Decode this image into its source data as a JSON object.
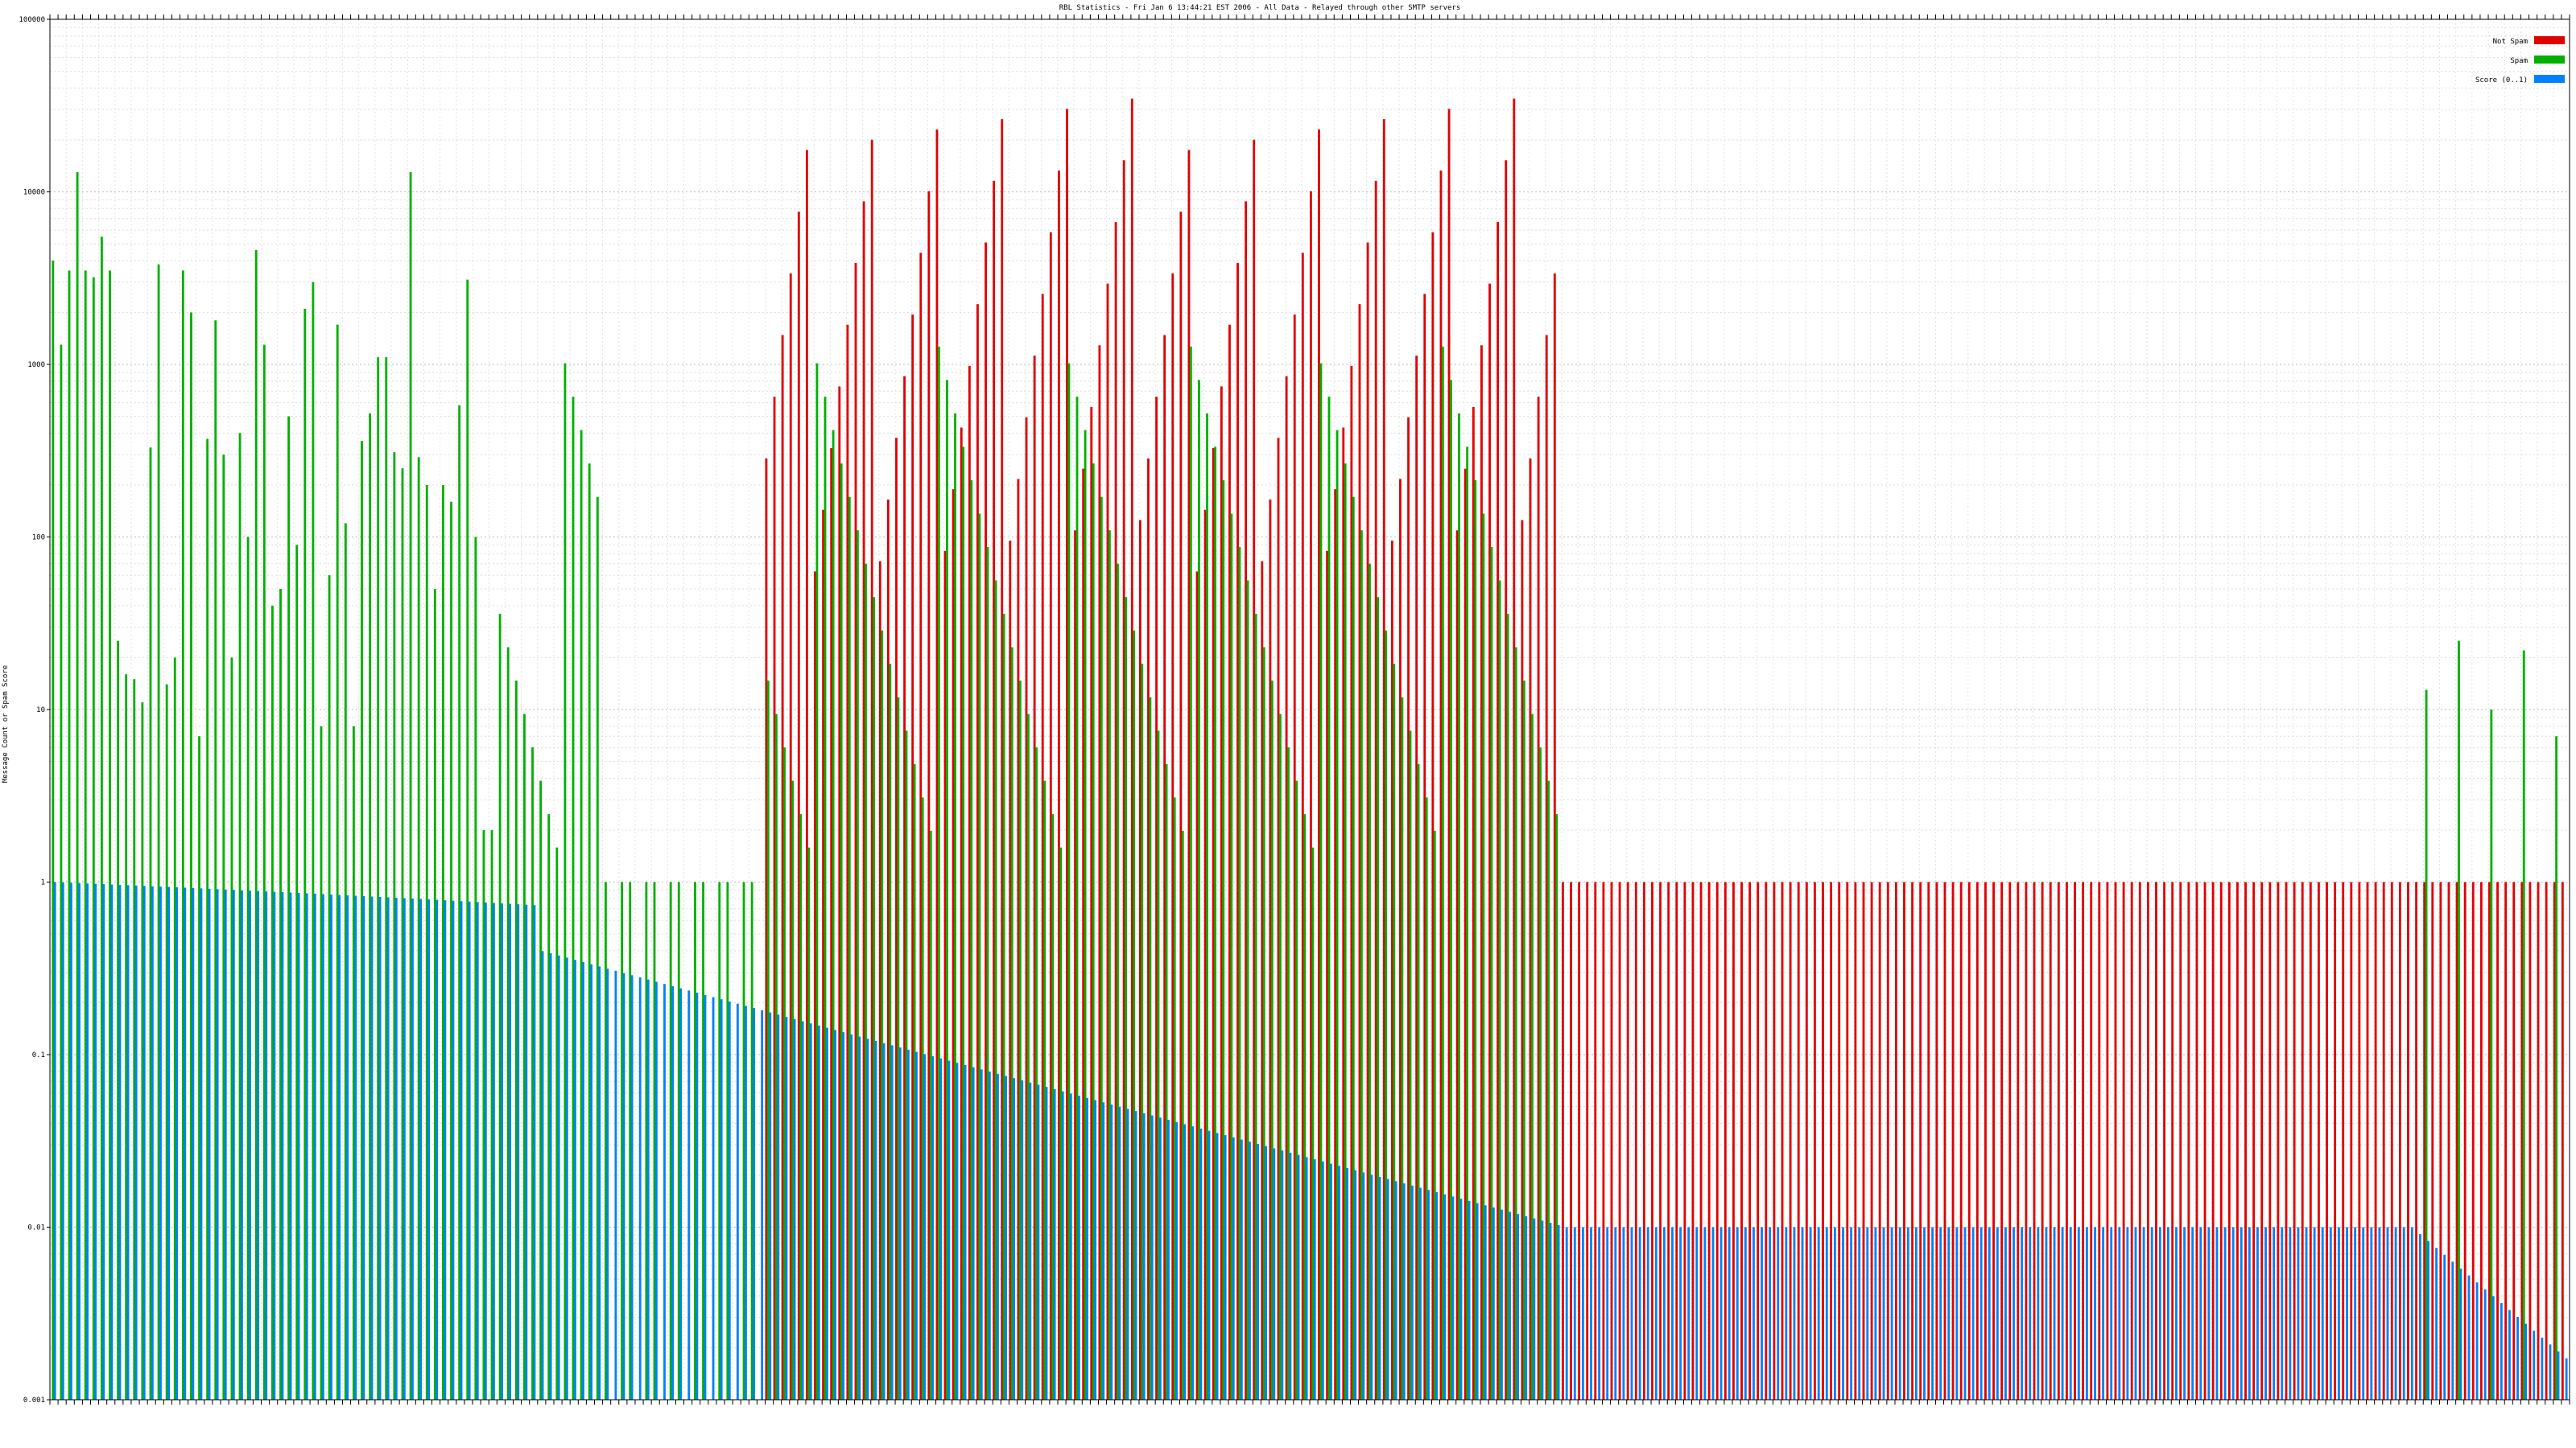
{
  "chart_data": {
    "type": "bar",
    "title": "RBL Statistics - Fri Jan  6 13:44:21 EST 2006 - All Data - Relayed through other SMTP servers",
    "ylabel": "Message Count or Spam Score",
    "xlabel": "",
    "yscale": "log",
    "ylim": [
      0.001,
      100000
    ],
    "yticks": [
      {
        "value": 0.001,
        "label": "0.001"
      },
      {
        "value": 0.01,
        "label": "0.01"
      },
      {
        "value": 0.1,
        "label": "0.1"
      },
      {
        "value": 1,
        "label": "1"
      },
      {
        "value": 10,
        "label": "10"
      },
      {
        "value": 100,
        "label": "100"
      },
      {
        "value": 1000,
        "label": "1000"
      },
      {
        "value": 10000,
        "label": "10000"
      },
      {
        "value": 100000,
        "label": "100000"
      }
    ],
    "grid": true,
    "legend_position": "top-right",
    "series": [
      {
        "name": "Not Spam",
        "color": "#e00000",
        "values": [
          0,
          0,
          0,
          0,
          0,
          0,
          0,
          0,
          0,
          0,
          0,
          0,
          0,
          0,
          0,
          0,
          0,
          0,
          0,
          0,
          0,
          0,
          0,
          0,
          0,
          0,
          0,
          0,
          0,
          0,
          0,
          0,
          0,
          0,
          0,
          0,
          0,
          0,
          0,
          0,
          0,
          0,
          0,
          0,
          0,
          0,
          0,
          0,
          0,
          0,
          0,
          0,
          0,
          0,
          0,
          0,
          0,
          0,
          0,
          0,
          0,
          0,
          0,
          0,
          0,
          0,
          0,
          0,
          0,
          0,
          0,
          0,
          0,
          0,
          0,
          0,
          0,
          0,
          0,
          0,
          0,
          0,
          0,
          0,
          0,
          0,
          0,
          0,
          0,
          0,
          0,
          0,
          0,
          0,
          0,
          0,
          0,
          0,
          0,
          0,
          3,
          3,
          2,
          2,
          2,
          2,
          2,
          2,
          2,
          2,
          2,
          2,
          1,
          1,
          1,
          1,
          1,
          1,
          1,
          1,
          1,
          1,
          1,
          1,
          1,
          1,
          1,
          1,
          1,
          1,
          1,
          1,
          1,
          1,
          1,
          1,
          1,
          1,
          1,
          1,
          1,
          1,
          1,
          1,
          1,
          1,
          1,
          1,
          1,
          1,
          1,
          1,
          1,
          1,
          1,
          1,
          1,
          1,
          1,
          1,
          1,
          1,
          1,
          1,
          1,
          1,
          1,
          1,
          1,
          1,
          1,
          1,
          1,
          1,
          1,
          1,
          1,
          1,
          1,
          1,
          1,
          1,
          1,
          1,
          1,
          1,
          1,
          1,
          1,
          1,
          1,
          1,
          1,
          1,
          1,
          1,
          1,
          1,
          1,
          1,
          1,
          1,
          1,
          1,
          1,
          1,
          1,
          1,
          1,
          1,
          1,
          1,
          1,
          1,
          1,
          1,
          1,
          1,
          1,
          1,
          1,
          1,
          1,
          1,
          1,
          1,
          1,
          1,
          1,
          1,
          1,
          1,
          1,
          1,
          1,
          1,
          1,
          1,
          1,
          1,
          1,
          1,
          1,
          1,
          1,
          1,
          1,
          1,
          1,
          1,
          1,
          1,
          1,
          1,
          1,
          1,
          1,
          1,
          1,
          1,
          1,
          1,
          1,
          1,
          1,
          1,
          1,
          1,
          1,
          1,
          1,
          1,
          1,
          1,
          1,
          1,
          1,
          1,
          1,
          1,
          1,
          1,
          1,
          1,
          1,
          1,
          1,
          1,
          1,
          1,
          1,
          1,
          1,
          1,
          1,
          1,
          1,
          1,
          1,
          1,
          1,
          1,
          1,
          1,
          1,
          1,
          1,
          1,
          1,
          1,
          1,
          1,
          1,
          1,
          1,
          1,
          1,
          1,
          1,
          1,
          1,
          1,
          1,
          1,
          1,
          1,
          1,
          1,
          1,
          1,
          1,
          1,
          1,
          1,
          1,
          1,
          1,
          1,
          1,
          1,
          1,
          1,
          1,
          1,
          1,
          1,
          1
        ]
      },
      {
        "name": "Spam",
        "color": "#00b000",
        "values": [
          4000,
          1300,
          3500,
          13000,
          3500,
          3200,
          5500,
          3500,
          25,
          16,
          15,
          11,
          330,
          3800,
          14,
          20,
          3500,
          2000,
          7,
          370,
          1800,
          300,
          20,
          400,
          100,
          4600,
          1300,
          40,
          50,
          500,
          90,
          2100,
          3000,
          8,
          60,
          1700,
          120,
          8,
          360,
          520,
          1100,
          1100,
          310,
          250,
          13000,
          290,
          200,
          50,
          200,
          160,
          580,
          3100,
          100,
          2,
          2
        ]
      },
      {
        "name": "Score (0..1)",
        "color": "#0080ff",
        "values": [
          1
        ]
      }
    ]
  },
  "legend": {
    "items": [
      {
        "label": "Not Spam",
        "color": "#e00000"
      },
      {
        "label": "Spam",
        "color": "#00b000"
      },
      {
        "label": "Score (0..1)",
        "color": "#0080ff"
      }
    ]
  }
}
